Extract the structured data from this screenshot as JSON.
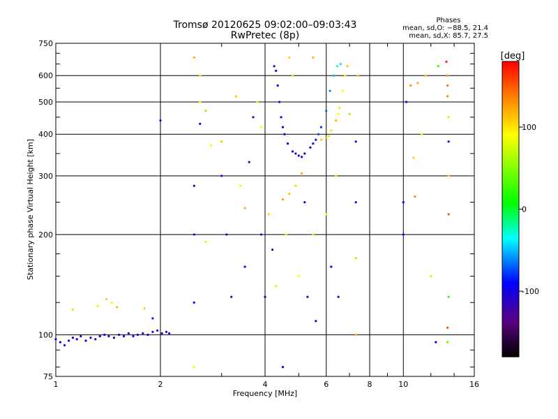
{
  "chart_data": {
    "type": "scatter",
    "title": "Tromsø 20120625 09:02:00–09:03:43",
    "subtitle": "RwPretec (8p)",
    "xlabel": "Frequency [MHz]",
    "ylabel": "Stationary phase Virtual Height [km]",
    "x_scale": "log",
    "y_scale": "log",
    "xlim": [
      1,
      16
    ],
    "ylim": [
      75,
      750
    ],
    "x_ticks": [
      1,
      2,
      4,
      6,
      8,
      10,
      16
    ],
    "y_ticks": [
      75,
      100,
      200,
      300,
      400,
      500,
      600,
      750
    ],
    "grid": true,
    "legend": {
      "title": "Phases",
      "line1": "mean, sd,O: −88.5, 21.4",
      "line2": "mean, sd,X:  85.7, 27.5"
    },
    "colorbar": {
      "label": "[deg]",
      "range": [
        -180,
        180
      ],
      "ticks": [
        100,
        0,
        -100
      ]
    },
    "series": [
      {
        "trace": "low_E_echoes",
        "points": [
          [
            1.0,
            97,
            -95
          ],
          [
            1.03,
            95,
            -100
          ],
          [
            1.06,
            93,
            -90
          ],
          [
            1.09,
            96,
            -105
          ],
          [
            1.12,
            98,
            -95
          ],
          [
            1.15,
            97,
            -100
          ],
          [
            1.18,
            99,
            -92
          ],
          [
            1.22,
            96,
            -98
          ],
          [
            1.26,
            98,
            -105
          ],
          [
            1.3,
            97,
            -95
          ],
          [
            1.34,
            99,
            -100
          ],
          [
            1.38,
            100,
            -90
          ],
          [
            1.42,
            99,
            -102
          ],
          [
            1.47,
            98,
            -95
          ],
          [
            1.52,
            100,
            -100
          ],
          [
            1.57,
            99,
            -96
          ],
          [
            1.62,
            101,
            -104
          ],
          [
            1.67,
            99,
            -95
          ],
          [
            1.72,
            100,
            -100
          ],
          [
            1.78,
            101,
            -92
          ],
          [
            1.84,
            100,
            -100
          ],
          [
            1.9,
            102,
            -96
          ],
          [
            1.96,
            103,
            -104
          ],
          [
            2.02,
            101,
            -95
          ],
          [
            2.08,
            102,
            -100
          ],
          [
            2.12,
            101,
            -92
          ],
          [
            1.12,
            119,
            70
          ],
          [
            1.32,
            122,
            95
          ],
          [
            1.4,
            128,
            110
          ],
          [
            1.45,
            125,
            95
          ],
          [
            1.5,
            121,
            115
          ],
          [
            1.8,
            120,
            105
          ],
          [
            1.9,
            112,
            -85
          ]
        ]
      },
      {
        "trace": "F_O_trace",
        "points": [
          [
            4.3,
            620,
            -110
          ],
          [
            4.35,
            560,
            -105
          ],
          [
            4.4,
            500,
            -100
          ],
          [
            4.45,
            450,
            -95
          ],
          [
            4.55,
            400,
            -100
          ],
          [
            4.65,
            375,
            -95
          ],
          [
            4.8,
            355,
            -100
          ],
          [
            5.0,
            345,
            -110
          ],
          [
            5.2,
            350,
            -100
          ],
          [
            5.4,
            365,
            -90
          ],
          [
            5.6,
            385,
            -85
          ],
          [
            5.8,
            420,
            -80
          ],
          [
            6.0,
            470,
            -70
          ],
          [
            6.15,
            540,
            -60
          ],
          [
            6.3,
            600,
            -50
          ],
          [
            6.45,
            640,
            -30
          ],
          [
            4.25,
            640,
            -110
          ],
          [
            4.9,
            350,
            -100
          ],
          [
            5.1,
            342,
            -105
          ],
          [
            5.5,
            375,
            -95
          ],
          [
            5.7,
            400,
            -75
          ],
          [
            4.5,
            420,
            -105
          ],
          [
            6.6,
            650,
            -40
          ]
        ]
      },
      {
        "trace": "F_X_trace",
        "points": [
          [
            5.8,
            385,
            110
          ],
          [
            6.0,
            390,
            120
          ],
          [
            6.2,
            410,
            100
          ],
          [
            6.4,
            440,
            115
          ],
          [
            6.55,
            480,
            100
          ],
          [
            6.7,
            540,
            90
          ],
          [
            6.8,
            600,
            95
          ],
          [
            6.9,
            640,
            110
          ],
          [
            4.5,
            255,
            125
          ],
          [
            4.7,
            265,
            115
          ],
          [
            4.9,
            280,
            105
          ],
          [
            5.1,
            305,
            120
          ],
          [
            6.1,
            395,
            70
          ],
          [
            6.5,
            460,
            85
          ],
          [
            7.0,
            460,
            60
          ]
        ]
      },
      {
        "trace": "scattered_echoes",
        "points": [
          [
            2.0,
            440,
            -100
          ],
          [
            2.5,
            680,
            120
          ],
          [
            2.6,
            600,
            100
          ],
          [
            2.6,
            500,
            90
          ],
          [
            2.6,
            430,
            -100
          ],
          [
            2.7,
            470,
            50
          ],
          [
            2.5,
            280,
            -110
          ],
          [
            2.5,
            200,
            -100
          ],
          [
            2.5,
            125,
            -100
          ],
          [
            2.5,
            80,
            90
          ],
          [
            2.7,
            190,
            70
          ],
          [
            2.8,
            370,
            95
          ],
          [
            3.0,
            300,
            -90
          ],
          [
            3.0,
            380,
            110
          ],
          [
            3.1,
            200,
            -110
          ],
          [
            3.2,
            130,
            -110
          ],
          [
            3.3,
            520,
            110
          ],
          [
            3.4,
            280,
            80
          ],
          [
            3.5,
            240,
            120
          ],
          [
            3.5,
            160,
            -100
          ],
          [
            3.6,
            330,
            -120
          ],
          [
            3.7,
            450,
            -100
          ],
          [
            3.8,
            500,
            95
          ],
          [
            3.9,
            200,
            -100
          ],
          [
            3.9,
            420,
            90
          ],
          [
            4.0,
            130,
            -100
          ],
          [
            4.1,
            230,
            105
          ],
          [
            4.2,
            180,
            -120
          ],
          [
            4.3,
            140,
            100
          ],
          [
            4.5,
            80,
            -90
          ],
          [
            4.6,
            200,
            75
          ],
          [
            4.7,
            680,
            110
          ],
          [
            4.8,
            600,
            100
          ],
          [
            5.0,
            150,
            90
          ],
          [
            5.2,
            250,
            -100
          ],
          [
            5.3,
            130,
            -110
          ],
          [
            5.5,
            680,
            120
          ],
          [
            5.5,
            200,
            100
          ],
          [
            5.6,
            110,
            -100
          ],
          [
            6.0,
            230,
            95
          ],
          [
            6.2,
            160,
            -90
          ],
          [
            6.4,
            300,
            100
          ],
          [
            6.5,
            130,
            -110
          ],
          [
            7.3,
            380,
            -100
          ],
          [
            7.3,
            250,
            -110
          ],
          [
            7.3,
            170,
            60
          ],
          [
            7.3,
            100,
            120
          ],
          [
            7.4,
            600,
            110
          ],
          [
            10.0,
            250,
            -100
          ],
          [
            10.0,
            200,
            -90
          ],
          [
            10.2,
            500,
            -100
          ],
          [
            10.5,
            560,
            130
          ],
          [
            10.7,
            340,
            110
          ],
          [
            10.8,
            260,
            135
          ],
          [
            11.0,
            570,
            120
          ],
          [
            11.3,
            400,
            80
          ],
          [
            11.6,
            600,
            110
          ],
          [
            12.0,
            150,
            100
          ],
          [
            12.4,
            95,
            -90
          ],
          [
            12.6,
            640,
            20
          ],
          [
            13.3,
            660,
            170
          ],
          [
            13.4,
            600,
            130
          ],
          [
            13.4,
            560,
            140
          ],
          [
            13.4,
            520,
            135
          ],
          [
            13.5,
            450,
            100
          ],
          [
            13.5,
            380,
            -100
          ],
          [
            13.5,
            300,
            110
          ],
          [
            13.5,
            230,
            150
          ],
          [
            13.5,
            130,
            20
          ],
          [
            13.4,
            105,
            150
          ],
          [
            13.4,
            95,
            40
          ]
        ]
      }
    ]
  }
}
